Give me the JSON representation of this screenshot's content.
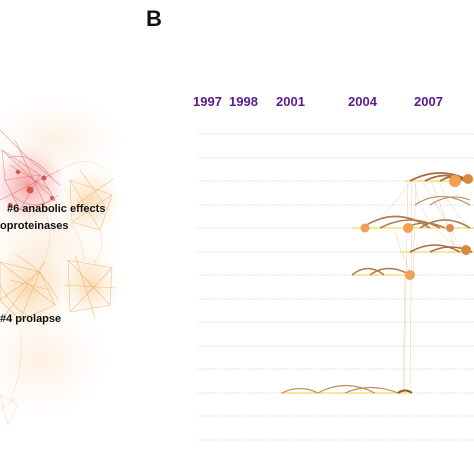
{
  "panel_letter": "B",
  "years": [
    "1997",
    "1998",
    "2001",
    "2004",
    "2007"
  ],
  "cluster_labels": {
    "anabolic": "#6 anabolic effects",
    "proteinases": "oproteinases",
    "prolapse": "#4 prolapse"
  },
  "colors": {
    "year_text": "#5b1a8c",
    "network_red": "#d9534f",
    "network_orange": "#f0a04b",
    "arc_brown": "#b07a4a",
    "node_orange": "#f0a050",
    "timeline_yellow": "#f6df7a"
  }
}
